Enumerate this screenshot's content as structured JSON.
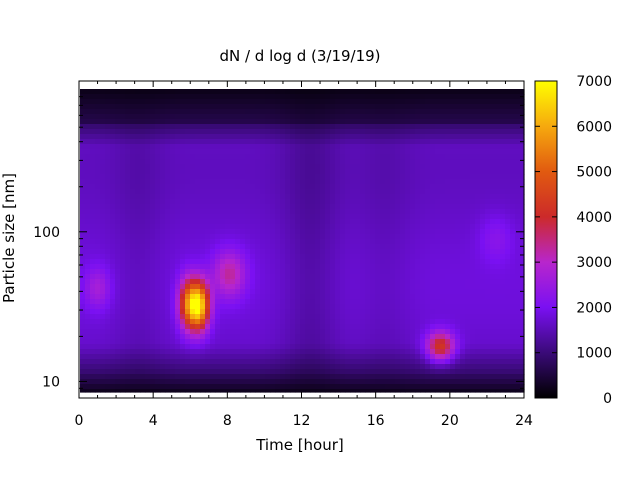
{
  "chart_data": {
    "type": "heatmap",
    "title": "dN / d log d (3/19/19)",
    "xlabel": "Time [hour]",
    "ylabel": "Particle size [nm]",
    "xlim": [
      0,
      24
    ],
    "x_ticks": [
      0,
      4,
      8,
      12,
      16,
      20,
      24
    ],
    "y_scale": "log",
    "ylim": [
      8.5,
      900
    ],
    "y_ticks": [
      10,
      100
    ],
    "colorbar": {
      "range": [
        0,
        7000
      ],
      "ticks": [
        0,
        1000,
        2000,
        3000,
        4000,
        5000,
        6000,
        7000
      ],
      "palette": [
        "#000000",
        "#3a0a78",
        "#7a10f2",
        "#b826cc",
        "#cc2a2a",
        "#e15a10",
        "#f6a90e",
        "#ffff00"
      ]
    },
    "features": [
      {
        "time_h": 1.0,
        "size_nm": 42,
        "value": 2600
      },
      {
        "time_h": 5.9,
        "size_nm": 33,
        "value": 4800
      },
      {
        "time_h": 6.5,
        "size_nm": 32,
        "value": 6200
      },
      {
        "time_h": 8.1,
        "size_nm": 52,
        "value": 3200
      },
      {
        "time_h": 19.5,
        "size_nm": 17,
        "value": 4300
      },
      {
        "time_h": 22.5,
        "size_nm": 90,
        "value": 2200
      }
    ],
    "grid": false,
    "legend": "colorbar-right"
  }
}
